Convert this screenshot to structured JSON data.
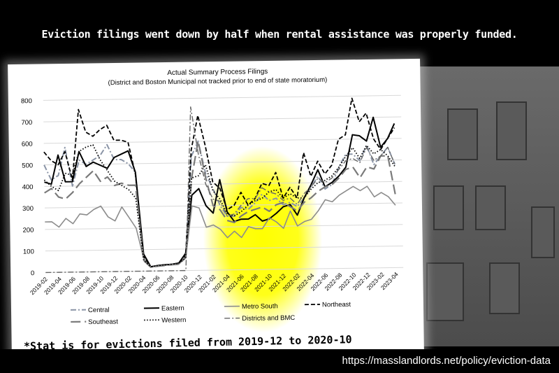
{
  "headline": "Eviction filings went down by half when rental assistance was properly funded.",
  "footnote": "*Stat is for evictions filed from 2019-12 to 2020-10",
  "url": "https://masslandlords.net/policy/eviction-data",
  "colors": {
    "highlight": "#ffff00",
    "background": "#000000"
  },
  "chart_data": {
    "type": "line",
    "title": "Actual Summary Process Filings",
    "subtitle": "(District and Boston Municipal not tracked prior to end of state moratorium)",
    "ylim": [
      0,
      800
    ],
    "yticks": [
      0,
      100,
      200,
      300,
      400,
      500,
      600,
      700,
      800
    ],
    "grid": true,
    "legend": "bottom",
    "highlight_range": [
      "2021-04",
      "2022-02"
    ],
    "x": [
      "2019-02",
      "2019-03",
      "2019-04",
      "2019-05",
      "2019-06",
      "2019-07",
      "2019-08",
      "2019-09",
      "2019-10",
      "2019-11",
      "2019-12",
      "2020-01",
      "2020-02",
      "2020-03",
      "2020-04",
      "2020-05",
      "2020-06",
      "2020-07",
      "2020-08",
      "2020-09",
      "2020-10",
      "2020-11",
      "2020-12",
      "2021-01",
      "2021-02",
      "2021-03",
      "2021-04",
      "2021-05",
      "2021-06",
      "2021-07",
      "2021-08",
      "2021-09",
      "2021-10",
      "2021-11",
      "2021-12",
      "2022-01",
      "2022-02",
      "2022-03",
      "2022-04",
      "2022-05",
      "2022-06",
      "2022-07",
      "2022-08",
      "2022-09",
      "2022-10",
      "2022-11",
      "2022-12",
      "2023-01",
      "2023-02",
      "2023-03",
      "2023-04"
    ],
    "xtick_labels": [
      "2019-02",
      "2019-04",
      "2019-06",
      "2019-08",
      "2019-10",
      "2019-12",
      "2020-02",
      "2020-04",
      "2020-06",
      "2020-08",
      "2020-10",
      "2020-12",
      "2021-02",
      "2021-04",
      "2021-06",
      "2021-08",
      "2021-10",
      "2021-12",
      "2022-02",
      "2022-04",
      "2022-06",
      "2022-08",
      "2022-10",
      "2022-12",
      "2023-02",
      "2023-04"
    ],
    "series": [
      {
        "name": "Central",
        "color": "#8a94a6",
        "dash": "8 3 2 3",
        "width": 2,
        "values": [
          500,
          430,
          450,
          580,
          400,
          520,
          500,
          520,
          540,
          590,
          520,
          520,
          500,
          460,
          60,
          20,
          25,
          28,
          30,
          35,
          60,
          530,
          600,
          450,
          380,
          300,
          250,
          250,
          290,
          280,
          310,
          350,
          320,
          330,
          300,
          310,
          290,
          330,
          380,
          430,
          370,
          390,
          470,
          530,
          530,
          500,
          570,
          480,
          520,
          560,
          480
        ]
      },
      {
        "name": "Eastern",
        "color": "#000000",
        "dash": "",
        "width": 2,
        "values": [
          420,
          410,
          545,
          420,
          420,
          560,
          490,
          510,
          495,
          480,
          530,
          545,
          560,
          460,
          80,
          20,
          25,
          28,
          30,
          35,
          80,
          350,
          380,
          300,
          265,
          420,
          270,
          225,
          235,
          235,
          255,
          225,
          235,
          260,
          290,
          300,
          250,
          330,
          390,
          460,
          380,
          400,
          430,
          470,
          620,
          615,
          590,
          700,
          560,
          600,
          670
        ]
      },
      {
        "name": "Metro South",
        "color": "#8c8c8c",
        "dash": "",
        "width": 1.6,
        "values": [
          235,
          235,
          210,
          250,
          225,
          270,
          265,
          290,
          305,
          255,
          235,
          300,
          250,
          200,
          60,
          18,
          22,
          25,
          28,
          30,
          60,
          300,
          290,
          200,
          210,
          190,
          150,
          180,
          150,
          200,
          190,
          190,
          240,
          220,
          190,
          270,
          200,
          220,
          230,
          270,
          320,
          310,
          340,
          360,
          380,
          360,
          380,
          330,
          350,
          330,
          290
        ]
      },
      {
        "name": "Northeast",
        "color": "#000000",
        "dash": "6 3",
        "width": 1.8,
        "values": [
          560,
          520,
          500,
          560,
          430,
          755,
          650,
          630,
          660,
          680,
          610,
          610,
          600,
          450,
          70,
          20,
          25,
          28,
          30,
          35,
          70,
          560,
          720,
          580,
          410,
          380,
          280,
          300,
          360,
          300,
          330,
          400,
          390,
          450,
          330,
          380,
          330,
          540,
          430,
          500,
          440,
          480,
          600,
          620,
          790,
          680,
          720,
          600,
          550,
          600,
          650
        ]
      },
      {
        "name": "Southeast",
        "color": "#7a7a7a",
        "dash": "14 6",
        "width": 2.2,
        "values": [
          370,
          390,
          350,
          340,
          370,
          410,
          440,
          470,
          420,
          440,
          400,
          410,
          400,
          400,
          50,
          18,
          22,
          25,
          28,
          30,
          60,
          430,
          600,
          430,
          300,
          280,
          230,
          220,
          250,
          270,
          280,
          290,
          270,
          300,
          310,
          290,
          270,
          310,
          330,
          360,
          380,
          390,
          420,
          460,
          470,
          420,
          470,
          460,
          520,
          520,
          340
        ]
      },
      {
        "name": "Western",
        "color": "#000000",
        "dash": "1.5 2.5",
        "width": 1.8,
        "values": [
          430,
          400,
          380,
          460,
          450,
          560,
          580,
          590,
          520,
          470,
          420,
          400,
          380,
          340,
          50,
          20,
          25,
          28,
          30,
          35,
          60,
          430,
          440,
          490,
          370,
          330,
          260,
          250,
          270,
          300,
          320,
          330,
          360,
          370,
          330,
          350,
          330,
          330,
          370,
          400,
          410,
          430,
          470,
          520,
          560,
          510,
          570,
          530,
          550,
          520,
          470
        ]
      },
      {
        "name": "Districts and BMC",
        "color": "#666666",
        "dash": "8 3 2 3",
        "width": 1.4,
        "values": [
          0,
          0,
          0,
          0,
          0,
          0,
          0,
          0,
          0,
          0,
          0,
          0,
          0,
          0,
          0,
          0,
          0,
          0,
          0,
          0,
          0,
          760,
          540,
          400,
          330,
          320,
          250,
          260,
          300,
          330,
          330,
          380,
          360,
          350,
          320,
          330,
          300,
          350,
          380,
          420,
          400,
          420,
          460,
          500,
          510,
          490,
          560,
          500,
          520,
          560,
          480
        ]
      }
    ]
  }
}
